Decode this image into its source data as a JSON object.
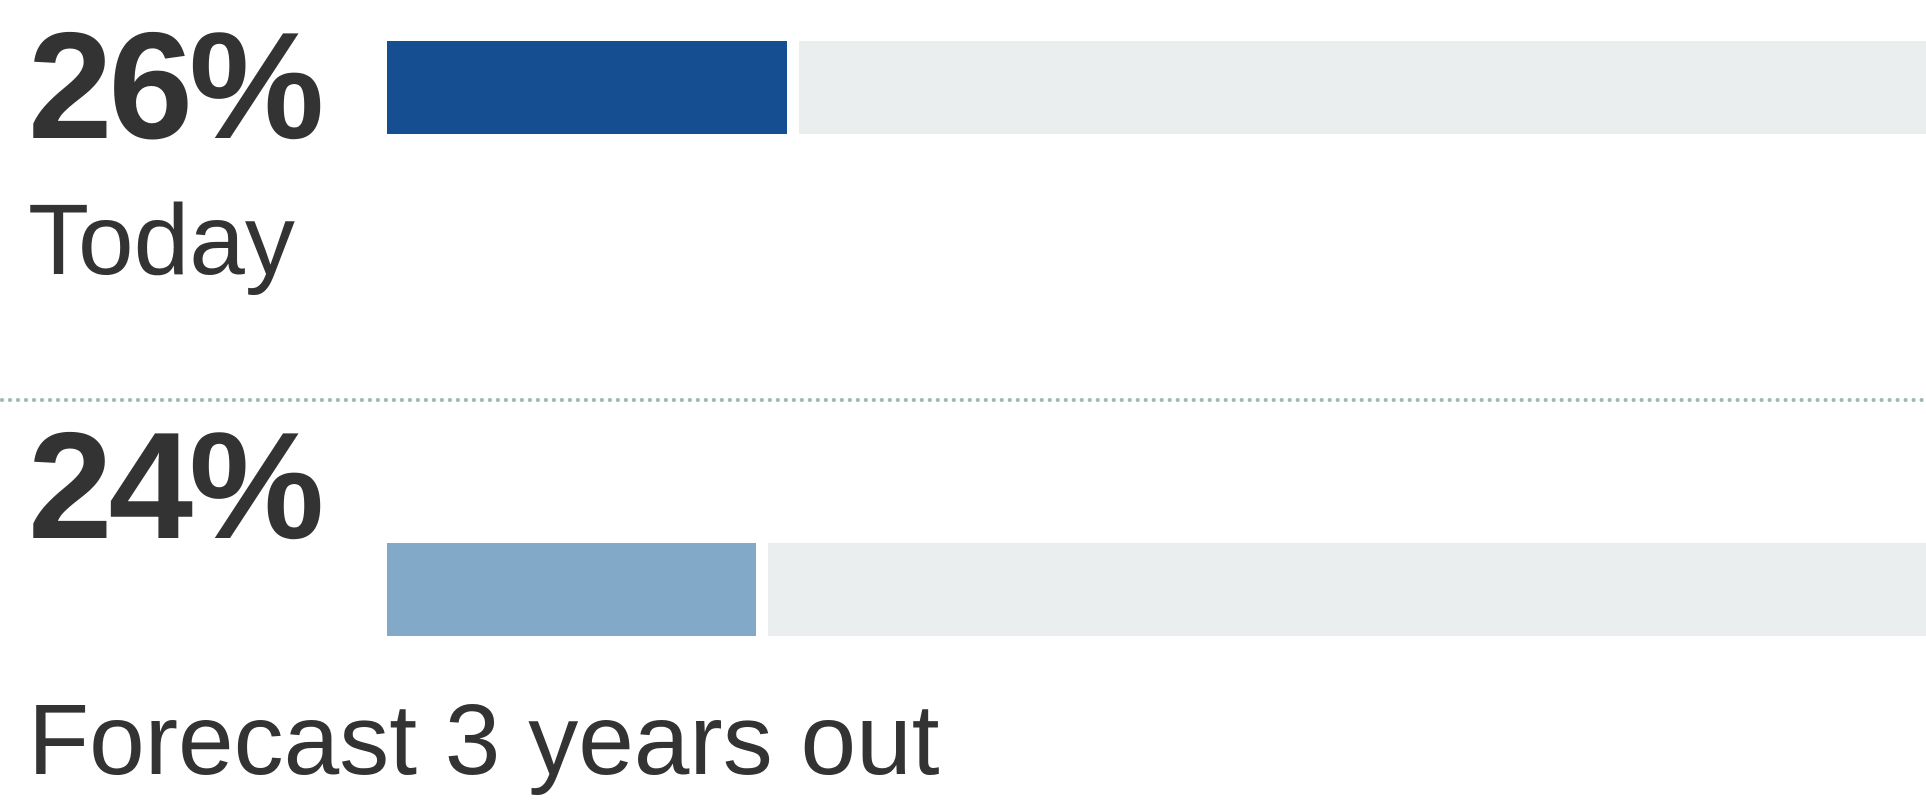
{
  "chart_data": {
    "type": "bar",
    "orientation": "horizontal",
    "categories": [
      "Today",
      "Forecast 3 years out"
    ],
    "values": [
      26,
      24
    ],
    "value_labels": [
      "26%",
      "24%"
    ],
    "unit": "%",
    "xlim": [
      0,
      100
    ],
    "colors": {
      "today": "#154f92",
      "forecast": "#82a9c7",
      "track": "#ebeeee",
      "divider": "#9fb8b6",
      "text": "#333333"
    }
  }
}
